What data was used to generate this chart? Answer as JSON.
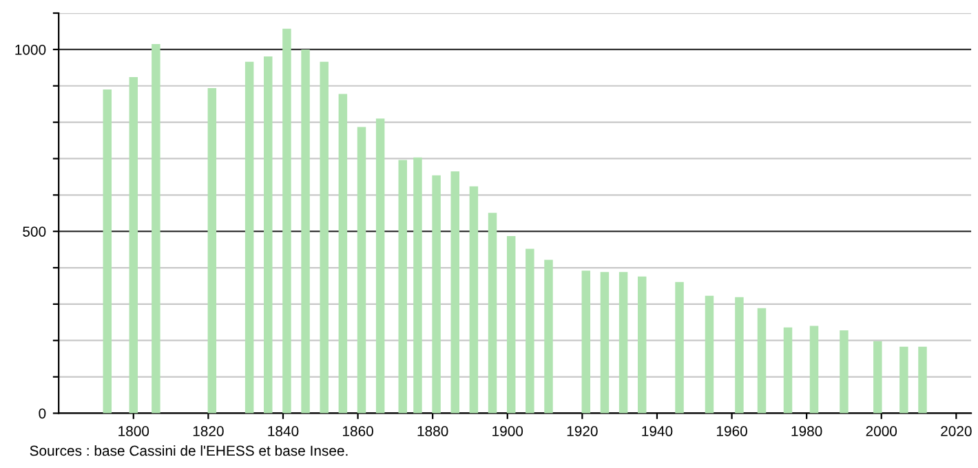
{
  "chart_data": {
    "type": "bar",
    "x": [
      1793,
      1800,
      1806,
      1821,
      1831,
      1836,
      1841,
      1846,
      1851,
      1856,
      1861,
      1866,
      1872,
      1876,
      1881,
      1886,
      1891,
      1896,
      1901,
      1906,
      1911,
      1921,
      1926,
      1931,
      1936,
      1946,
      1954,
      1962,
      1968,
      1975,
      1982,
      1990,
      1999,
      2006,
      2011
    ],
    "values": [
      890,
      924,
      1015,
      894,
      966,
      981,
      1057,
      1000,
      966,
      878,
      787,
      810,
      696,
      703,
      654,
      665,
      624,
      551,
      487,
      452,
      422,
      392,
      388,
      388,
      376,
      361,
      323,
      319,
      289,
      236,
      240,
      228,
      198,
      183,
      183
    ],
    "color": "#b0e3b0",
    "xlim": [
      1780,
      2024
    ],
    "xticks": [
      1800,
      1820,
      1840,
      1860,
      1880,
      1900,
      1920,
      1940,
      1960,
      1980,
      2000,
      2020
    ],
    "ylim": [
      0,
      1100
    ],
    "yticks": [
      0,
      {
        "value": 100,
        "label": null
      },
      {
        "value": 200,
        "label": null
      },
      {
        "value": 300,
        "label": null
      },
      {
        "value": 400,
        "label": null
      },
      500,
      {
        "value": 600,
        "label": null
      },
      {
        "value": 700,
        "label": null
      },
      {
        "value": 800,
        "label": null
      },
      {
        "value": 900,
        "label": null
      },
      1000,
      {
        "value": 1100,
        "label": null
      }
    ],
    "grid": "y",
    "annotations": [
      "Sources : base Cassini de l'EHESS et base Insee."
    ]
  }
}
